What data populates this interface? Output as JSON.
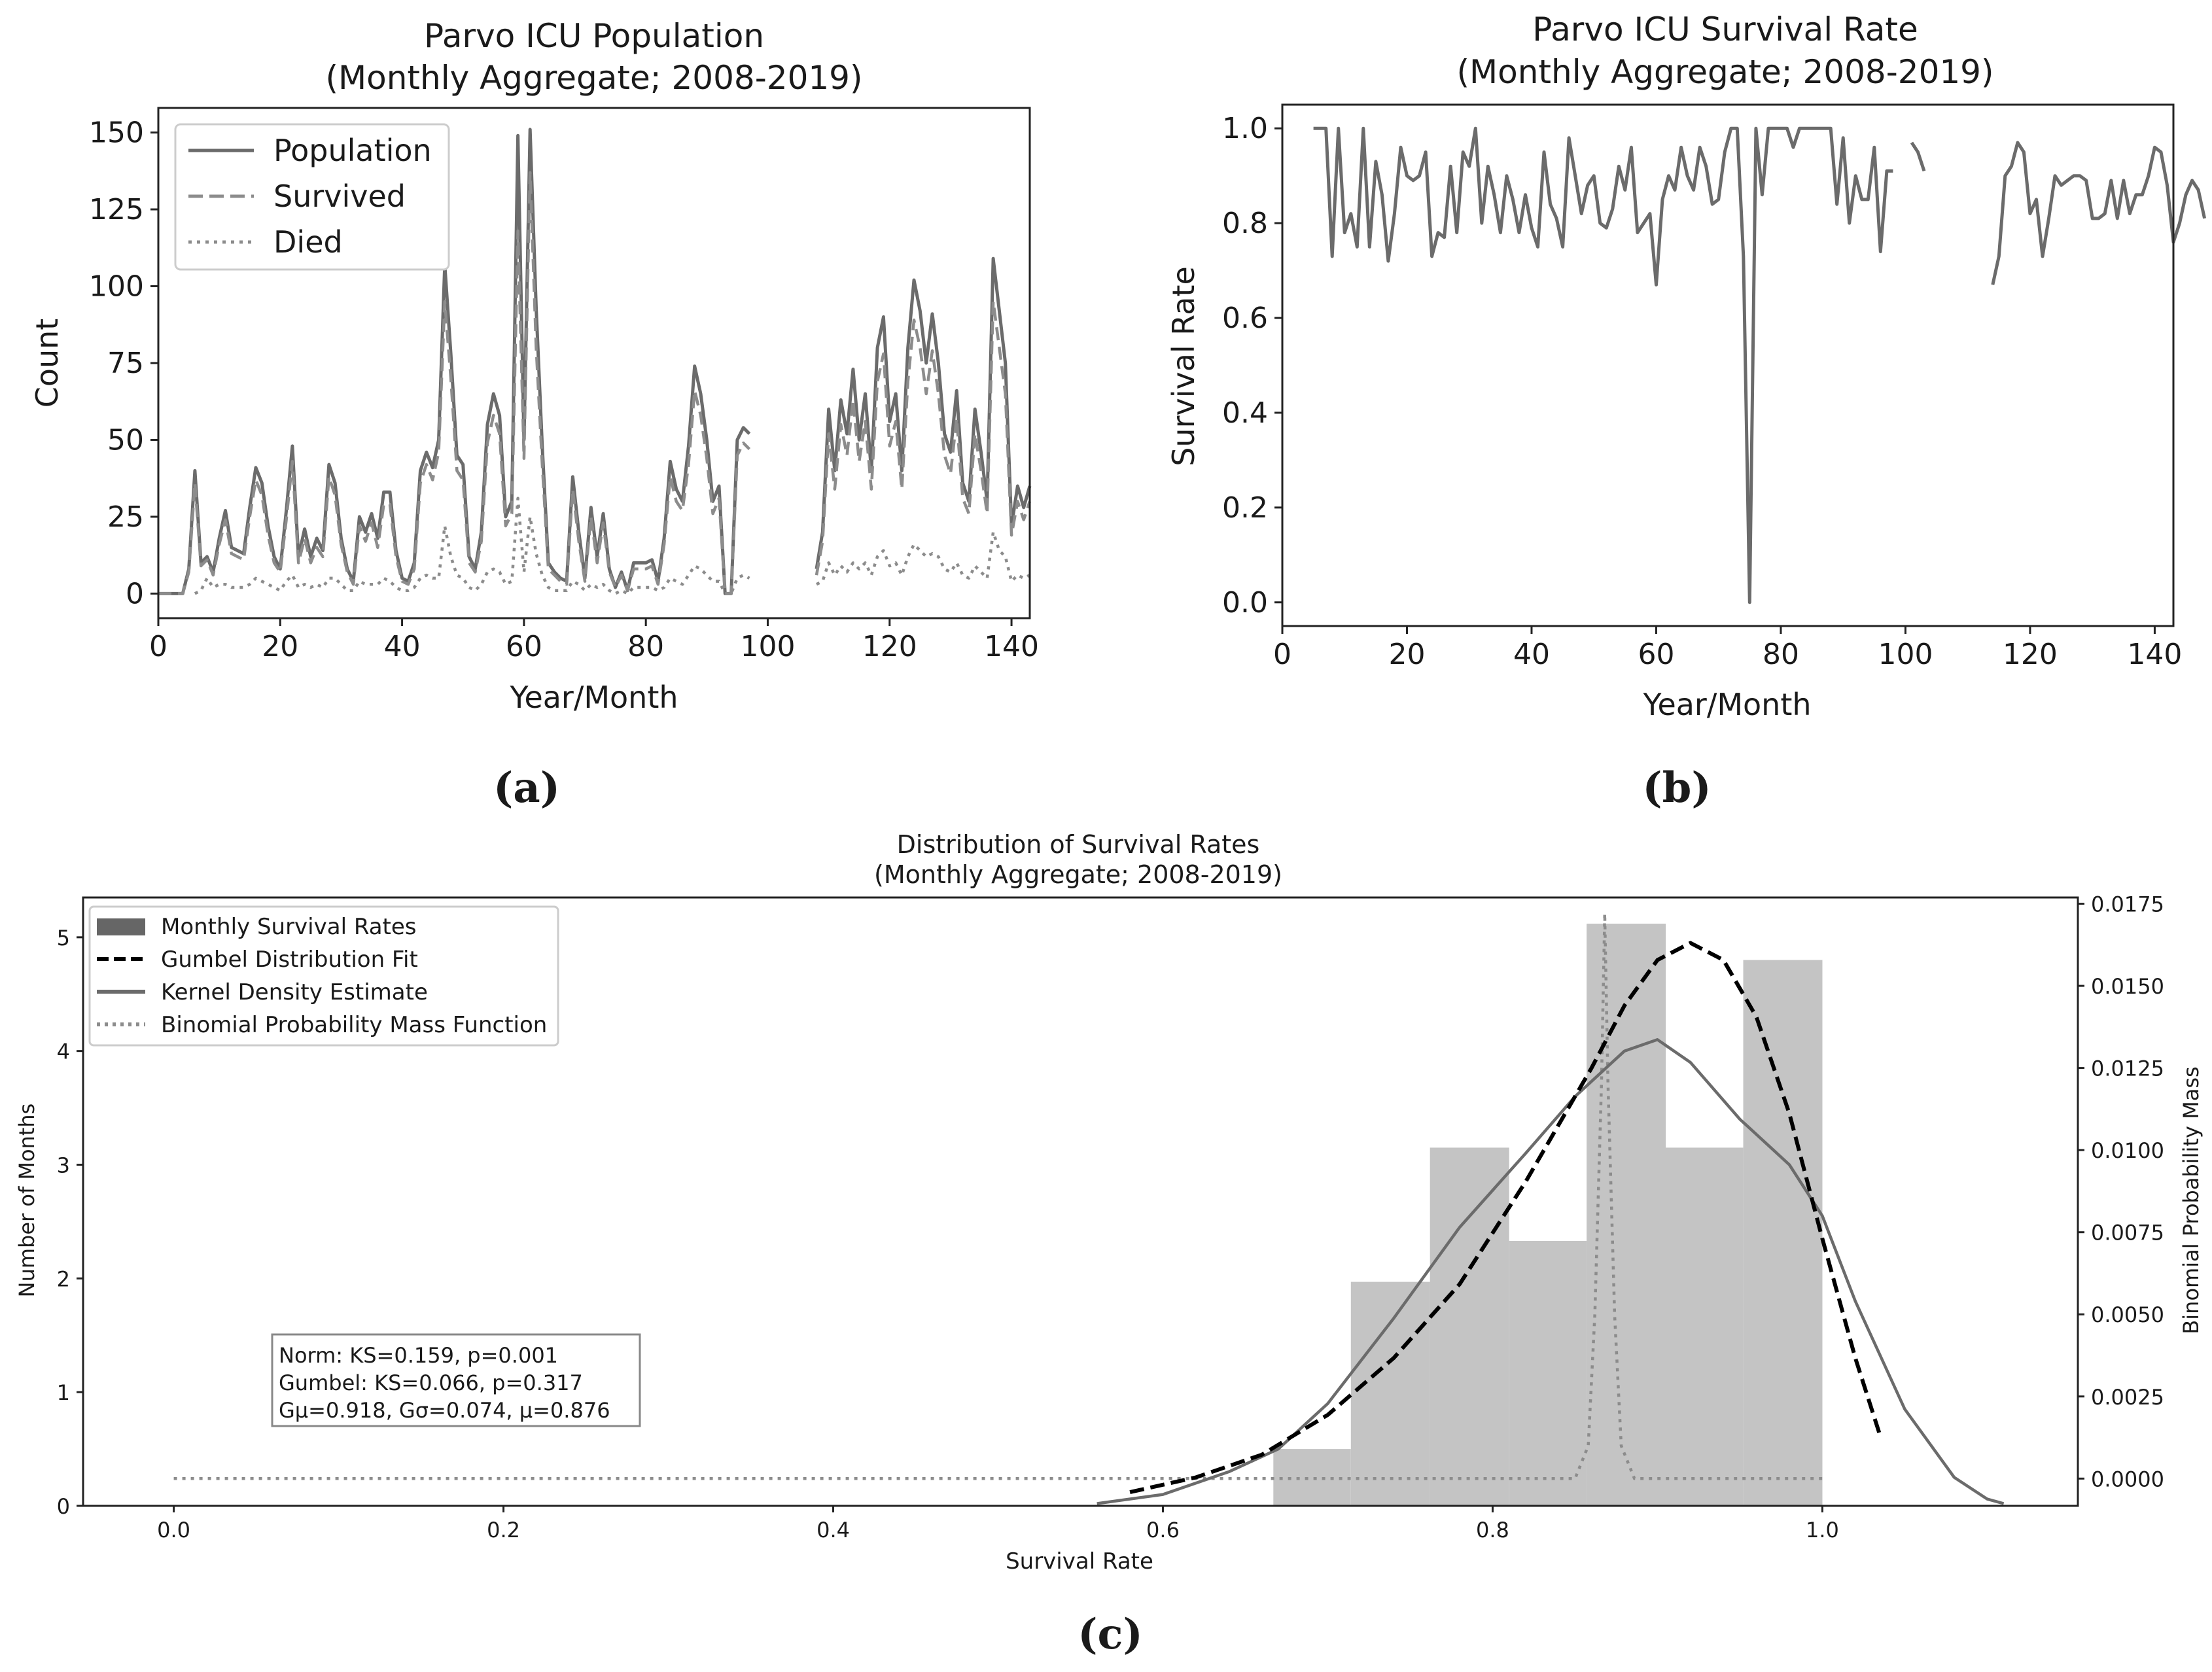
{
  "chart_data": [
    {
      "id": "a",
      "type": "line",
      "panel_label": "(a)",
      "title_line1": "Parvo ICU Population",
      "title_line2": "(Monthly Aggregate; 2008-2019)",
      "xlabel": "Year/Month",
      "ylabel": "Count",
      "xlim": [
        0,
        143
      ],
      "ylim": [
        -8,
        158
      ],
      "xticks": [
        0,
        20,
        40,
        60,
        80,
        100,
        120,
        140
      ],
      "yticks": [
        0,
        25,
        50,
        75,
        100,
        125,
        150
      ],
      "legend_position": "top-left",
      "x": [
        0,
        1,
        2,
        3,
        4,
        5,
        6,
        7,
        8,
        9,
        10,
        11,
        12,
        13,
        14,
        15,
        16,
        17,
        18,
        19,
        20,
        21,
        22,
        23,
        24,
        25,
        26,
        27,
        28,
        29,
        30,
        31,
        32,
        33,
        34,
        35,
        36,
        37,
        38,
        39,
        40,
        41,
        42,
        43,
        44,
        45,
        46,
        47,
        48,
        49,
        50,
        51,
        52,
        53,
        54,
        55,
        56,
        57,
        58,
        59,
        60,
        61,
        62,
        63,
        64,
        65,
        66,
        67,
        68,
        69,
        70,
        71,
        72,
        73,
        74,
        75,
        76,
        77,
        78,
        79,
        80,
        81,
        82,
        83,
        84,
        85,
        86,
        87,
        88,
        89,
        90,
        91,
        92,
        93,
        94,
        95,
        96,
        97,
        98,
        99,
        100,
        101,
        102,
        103,
        104,
        105,
        106,
        107,
        108,
        109,
        110,
        111,
        112,
        113,
        114,
        115,
        116,
        117,
        118,
        119,
        120,
        121,
        122,
        123,
        124,
        125,
        126,
        127,
        128,
        129,
        130,
        131,
        132,
        133,
        134,
        135,
        136,
        137,
        138,
        139,
        140,
        141,
        142,
        143
      ],
      "series": [
        {
          "name": "Population",
          "style": "solid",
          "color": "#6b6b6b",
          "values": [
            0,
            0,
            0,
            0,
            0,
            8,
            40,
            10,
            12,
            7,
            18,
            27,
            15,
            14,
            13,
            28,
            41,
            36,
            22,
            12,
            8,
            27,
            48,
            12,
            21,
            12,
            18,
            14,
            42,
            36,
            18,
            8,
            4,
            25,
            20,
            26,
            18,
            33,
            33,
            14,
            5,
            4,
            10,
            40,
            46,
            41,
            50,
            107,
            78,
            45,
            42,
            12,
            8,
            20,
            55,
            65,
            58,
            25,
            30,
            149,
            50,
            151,
            93,
            48,
            10,
            7,
            5,
            4,
            38,
            20,
            5,
            28,
            12,
            26,
            8,
            2,
            7,
            1,
            10,
            10,
            10,
            11,
            4,
            18,
            43,
            34,
            30,
            48,
            74,
            65,
            50,
            30,
            35,
            0,
            0,
            50,
            54,
            52,
            null,
            null,
            null,
            null,
            null,
            null,
            null,
            null,
            null,
            null,
            8,
            20,
            60,
            40,
            63,
            52,
            73,
            50,
            65,
            40,
            80,
            90,
            56,
            65,
            40,
            80,
            102,
            92,
            75,
            91,
            75,
            52,
            46,
            66,
            36,
            30,
            60,
            46,
            30,
            109,
            92,
            75,
            22,
            35,
            28,
            35
          ]
        },
        {
          "name": "Survived",
          "style": "dashed",
          "color": "#8c8c8c",
          "values": [
            0,
            0,
            0,
            0,
            0,
            7,
            36,
            9,
            11,
            6,
            16,
            24,
            13,
            12,
            11,
            25,
            37,
            32,
            19,
            10,
            7,
            24,
            43,
            10,
            18,
            10,
            15,
            12,
            38,
            32,
            16,
            7,
            3,
            22,
            17,
            23,
            15,
            29,
            29,
            12,
            4,
            3,
            8,
            36,
            42,
            37,
            46,
            95,
            70,
            40,
            37,
            10,
            7,
            17,
            49,
            58,
            52,
            22,
            26,
            118,
            44,
            137,
            80,
            42,
            8,
            6,
            4,
            3,
            34,
            17,
            4,
            25,
            10,
            23,
            7,
            2,
            6,
            1,
            8,
            8,
            8,
            9,
            3,
            16,
            38,
            30,
            27,
            42,
            66,
            58,
            44,
            26,
            31,
            0,
            0,
            45,
            49,
            47,
            null,
            null,
            null,
            null,
            null,
            null,
            null,
            null,
            null,
            null,
            6,
            17,
            52,
            34,
            55,
            45,
            63,
            43,
            56,
            34,
            69,
            78,
            48,
            56,
            34,
            69,
            89,
            80,
            65,
            79,
            65,
            45,
            39,
            57,
            31,
            26,
            52,
            40,
            26,
            95,
            80,
            65,
            19,
            30,
            24,
            30
          ]
        },
        {
          "name": "Died",
          "style": "dotted",
          "color": "#8c8c8c",
          "values": [
            null,
            null,
            null,
            null,
            null,
            null,
            0,
            1,
            5,
            2,
            3,
            3,
            2,
            2,
            2,
            3,
            5,
            4,
            3,
            2,
            1,
            4,
            6,
            2,
            3,
            2,
            3,
            2,
            5,
            5,
            3,
            1,
            1,
            4,
            3,
            3,
            3,
            5,
            4,
            2,
            1,
            1,
            2,
            5,
            6,
            5,
            5,
            22,
            12,
            6,
            5,
            2,
            1,
            3,
            7,
            8,
            7,
            3,
            4,
            31,
            7,
            25,
            13,
            6,
            2,
            1,
            1,
            1,
            4,
            3,
            1,
            3,
            2,
            3,
            1,
            0,
            1,
            0,
            2,
            2,
            2,
            2,
            1,
            2,
            5,
            4,
            3,
            6,
            9,
            8,
            6,
            4,
            4,
            0,
            0,
            5,
            6,
            5,
            null,
            null,
            null,
            null,
            null,
            null,
            null,
            null,
            null,
            null,
            3,
            4,
            10,
            6,
            9,
            7,
            10,
            8,
            10,
            6,
            12,
            14,
            9,
            10,
            6,
            12,
            16,
            14,
            12,
            13,
            12,
            8,
            7,
            10,
            6,
            5,
            9,
            7,
            5,
            20,
            14,
            12,
            4,
            6,
            5,
            6
          ]
        }
      ]
    },
    {
      "id": "b",
      "type": "line",
      "panel_label": "(b)",
      "title_line1": "Parvo ICU Survival Rate",
      "title_line2": "(Monthly Aggregate; 2008-2019)",
      "xlabel": "Year/Month",
      "ylabel": "Survival Rate",
      "xlim": [
        0,
        143
      ],
      "ylim": [
        -0.05,
        1.05
      ],
      "xticks": [
        0,
        20,
        40,
        60,
        80,
        100,
        120,
        140
      ],
      "yticks": [
        0.0,
        0.2,
        0.4,
        0.6,
        0.8,
        1.0
      ],
      "ytick_labels": [
        "0.0",
        "0.2",
        "0.4",
        "0.6",
        "0.8",
        "1.0"
      ],
      "x_start": 5,
      "series": [
        {
          "name": "Survival Rate",
          "style": "solid",
          "color": "#6b6b6b",
          "values": [
            1.0,
            1.0,
            1.0,
            0.73,
            1.0,
            0.78,
            0.82,
            0.75,
            1.0,
            0.75,
            0.93,
            0.86,
            0.72,
            0.82,
            0.96,
            0.9,
            0.89,
            0.9,
            0.95,
            0.73,
            0.78,
            0.77,
            0.92,
            0.78,
            0.95,
            0.92,
            1.0,
            0.8,
            0.92,
            0.86,
            0.78,
            0.9,
            0.85,
            0.78,
            0.86,
            0.79,
            0.75,
            0.95,
            0.84,
            0.81,
            0.75,
            0.98,
            0.9,
            0.82,
            0.88,
            0.9,
            0.8,
            0.79,
            0.83,
            0.92,
            0.87,
            0.96,
            0.78,
            0.8,
            0.82,
            0.67,
            0.85,
            0.9,
            0.87,
            0.96,
            0.9,
            0.87,
            0.96,
            0.92,
            0.84,
            0.85,
            0.95,
            1.0,
            1.0,
            0.73,
            0.0,
            1.0,
            0.86,
            1.0,
            1.0,
            1.0,
            1.0,
            0.96,
            1.0,
            1.0,
            1.0,
            1.0,
            1.0,
            1.0,
            0.84,
            0.98,
            0.8,
            0.9,
            0.85,
            0.85,
            0.96,
            0.74,
            0.91,
            0.91,
            null,
            null,
            0.97,
            0.95,
            0.91,
            null,
            null,
            null,
            null,
            null,
            null,
            null,
            null,
            null,
            null,
            0.67,
            0.73,
            0.9,
            0.92,
            0.97,
            0.95,
            0.82,
            0.85,
            0.73,
            0.81,
            0.9,
            0.88,
            0.89,
            0.9,
            0.9,
            0.89,
            0.81,
            0.81,
            0.82,
            0.89,
            0.81,
            0.89,
            0.82,
            0.86,
            0.86,
            0.9,
            0.96,
            0.95,
            0.88,
            0.76,
            0.8,
            0.86,
            0.89,
            0.87,
            0.81
          ]
        }
      ]
    },
    {
      "id": "c",
      "type": "bar",
      "panel_label": "(c)",
      "title_line1": "Distribution of Survival Rates",
      "title_line2": "(Monthly Aggregate; 2008-2019)",
      "xlabel": "Survival Rate",
      "ylabel": "Number of Months",
      "ylabel_right": "Binomial Probability Mass",
      "xlim": [
        -0.055,
        1.155
      ],
      "ylim": [
        0,
        5.35
      ],
      "ylim_right": [
        -0.00083,
        0.01769
      ],
      "xticks": [
        0.0,
        0.2,
        0.4,
        0.6,
        0.8,
        1.0
      ],
      "xtick_labels": [
        "0.0",
        "0.2",
        "0.4",
        "0.6",
        "0.8",
        "1.0"
      ],
      "yticks": [
        0,
        1,
        2,
        3,
        4,
        5
      ],
      "yticks_right": [
        0.0,
        0.0025,
        0.005,
        0.0075,
        0.01,
        0.0125,
        0.015,
        0.0175
      ],
      "ytick_labels_right": [
        "0.0000",
        "0.0025",
        "0.0050",
        "0.0075",
        "0.0100",
        "0.0125",
        "0.0150",
        "0.0175"
      ],
      "legend_position": "top-left",
      "legend": [
        {
          "label": "Monthly Survival Rates",
          "style": "patch",
          "color": "#666666"
        },
        {
          "label": "Gumbel Distribution Fit",
          "style": "dashed",
          "color": "#000000"
        },
        {
          "label": "Kernel Density Estimate",
          "style": "solid",
          "color": "#6b6b6b"
        },
        {
          "label": "Binomial Probability Mass Function",
          "style": "dotted",
          "color": "#8c8c8c"
        }
      ],
      "histogram": {
        "bin_edges": [
          0.667,
          0.714,
          0.762,
          0.81,
          0.857,
          0.905,
          0.952,
          1.0
        ],
        "values": [
          0.5,
          1.97,
          3.15,
          2.33,
          5.12,
          3.15,
          4.8
        ],
        "color": "#c4c4c4"
      },
      "gumbel_fit": {
        "x": [
          0.58,
          0.62,
          0.66,
          0.7,
          0.74,
          0.78,
          0.82,
          0.86,
          0.88,
          0.9,
          0.92,
          0.94,
          0.96,
          0.98,
          1.0,
          1.02,
          1.035
        ],
        "y": [
          0.12,
          0.25,
          0.45,
          0.8,
          1.3,
          1.95,
          2.85,
          3.85,
          4.4,
          4.8,
          4.95,
          4.8,
          4.3,
          3.45,
          2.35,
          1.3,
          0.62
        ]
      },
      "kde": {
        "x": [
          0.56,
          0.6,
          0.64,
          0.67,
          0.7,
          0.74,
          0.78,
          0.82,
          0.85,
          0.88,
          0.9,
          0.92,
          0.95,
          0.98,
          1.0,
          1.02,
          1.05,
          1.08,
          1.1,
          1.11
        ],
        "y": [
          0.02,
          0.1,
          0.3,
          0.5,
          0.9,
          1.65,
          2.45,
          3.1,
          3.6,
          4.0,
          4.1,
          3.9,
          3.4,
          3.0,
          2.55,
          1.8,
          0.85,
          0.25,
          0.06,
          0.02
        ]
      },
      "binomial_pmf": {
        "x": [
          0.0,
          0.85,
          0.858,
          0.862,
          0.866,
          0.868,
          0.87,
          0.874,
          0.878,
          0.886,
          1.0
        ],
        "y": [
          0.0,
          0.0,
          0.001,
          0.005,
          0.012,
          0.0172,
          0.012,
          0.005,
          0.001,
          0.0,
          0.0
        ]
      },
      "stats_lines": [
        "Norm: KS=0.159, p=0.001",
        "Gumbel: KS=0.066, p=0.317",
        "Gμ=0.918, Gσ=0.074, μ=0.876"
      ]
    }
  ]
}
